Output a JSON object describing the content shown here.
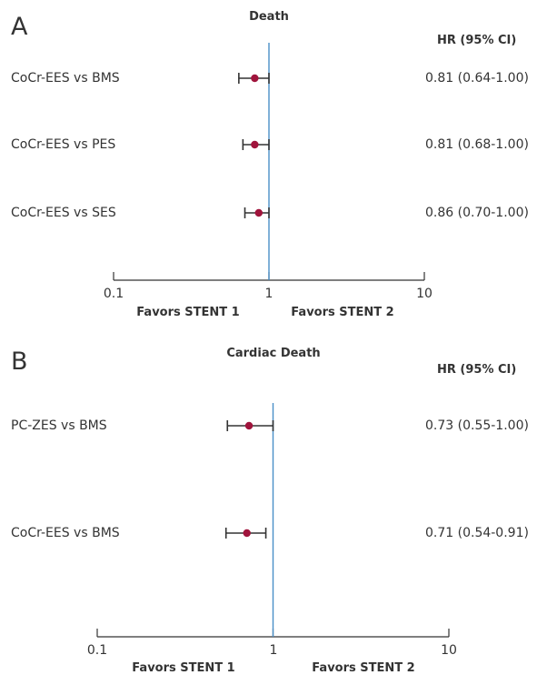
{
  "chart_data": [
    {
      "type": "forest",
      "panel": "A",
      "title": "Death",
      "value_header": "HR (95% CI)",
      "x_scale": "log",
      "xlim": [
        0.1,
        10
      ],
      "ticks": [
        "0.1",
        "1",
        "10"
      ],
      "reference_line": 1,
      "favors_left": "Favors STENT 1",
      "favors_right": "Favors STENT 2",
      "rows": [
        {
          "label": "CoCr-EES vs BMS",
          "hr": 0.81,
          "lo": 0.64,
          "hi": 1.0,
          "text": "0.81 (0.64-1.00)"
        },
        {
          "label": "CoCr-EES vs PES",
          "hr": 0.81,
          "lo": 0.68,
          "hi": 1.0,
          "text": "0.81 (0.68-1.00)"
        },
        {
          "label": "CoCr-EES vs SES",
          "hr": 0.86,
          "lo": 0.7,
          "hi": 1.0,
          "text": "0.86 (0.70-1.00)"
        }
      ]
    },
    {
      "type": "forest",
      "panel": "B",
      "title": "Cardiac Death",
      "value_header": "HR (95% CI)",
      "x_scale": "log",
      "xlim": [
        0.1,
        10
      ],
      "ticks": [
        "0.1",
        "1",
        "10"
      ],
      "reference_line": 1,
      "favors_left": "Favors STENT 1",
      "favors_right": "Favors STENT 2",
      "rows": [
        {
          "label": "PC-ZES vs BMS",
          "hr": 0.73,
          "lo": 0.55,
          "hi": 1.0,
          "text": "0.73 (0.55-1.00)"
        },
        {
          "label": "CoCr-EES vs BMS",
          "hr": 0.71,
          "lo": 0.54,
          "hi": 0.91,
          "text": "0.71 (0.54-0.91)"
        }
      ]
    }
  ],
  "colors": {
    "reference_line": "#4a90c8",
    "point": "#a0143c",
    "whisker": "#333333",
    "axis": "#333333"
  }
}
